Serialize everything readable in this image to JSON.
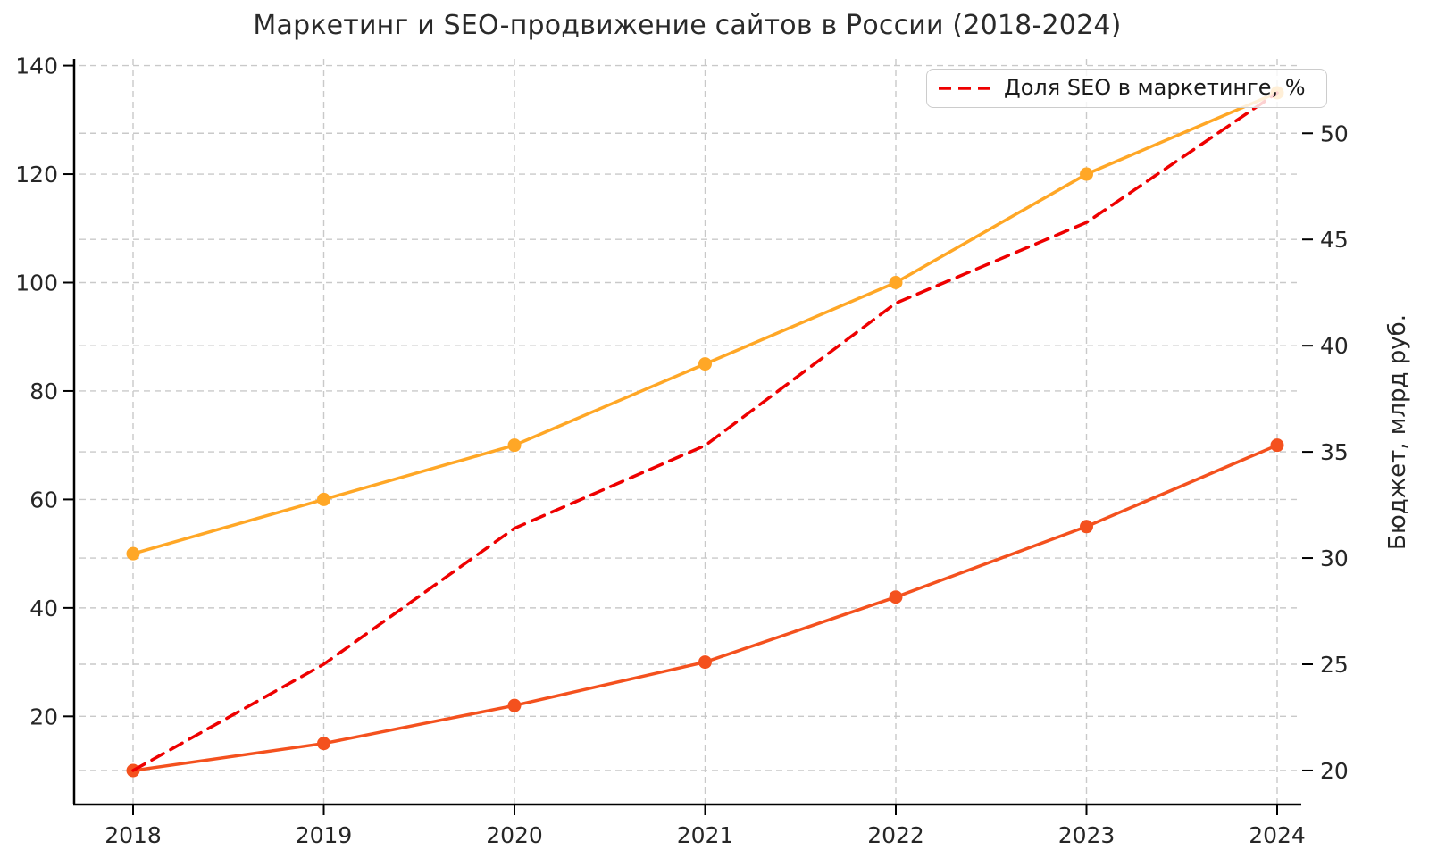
{
  "chart_data": {
    "type": "line",
    "title": "Маркетинг и SEO-продвижение сайтов в России (2018-2024)",
    "x": [
      2018,
      2019,
      2020,
      2021,
      2022,
      2023,
      2024
    ],
    "series": [
      {
        "name": "marketing_budget_line",
        "axis": "left",
        "color": "#FFA726",
        "style": "solid",
        "markers": true,
        "values": [
          50,
          60,
          70,
          85,
          100,
          120,
          135
        ]
      },
      {
        "name": "seo_budget_line",
        "axis": "left",
        "color": "#F4511E",
        "style": "solid",
        "markers": true,
        "values": [
          10,
          15,
          22,
          30,
          42,
          55,
          70
        ]
      },
      {
        "name": "seo_share_line",
        "label": "Доля SEO в маркетинге, %",
        "axis": "right",
        "color": "#EE0000",
        "style": "dashed",
        "markers": false,
        "values": [
          20.0,
          25.0,
          31.4,
          35.3,
          42.0,
          45.8,
          51.9
        ]
      }
    ],
    "left_axis": {
      "ticks": [
        20,
        40,
        60,
        80,
        100,
        120,
        140
      ],
      "range": [
        3.75,
        141.25
      ]
    },
    "right_axis": {
      "ticks": [
        20,
        25,
        30,
        35,
        40,
        45,
        50
      ],
      "range": [
        18.4,
        53.5
      ],
      "label": "Бюджет, млрд руб."
    },
    "x_axis": {
      "ticks": [
        2018,
        2019,
        2020,
        2021,
        2022,
        2023,
        2024
      ]
    },
    "grid": true,
    "legend": {
      "position": "top-right",
      "entries": [
        "Доля SEO в маркетинге, %"
      ]
    },
    "colors": {
      "grid": "#C9C9C9",
      "axis": "#000000",
      "tick_text": "#262626"
    }
  }
}
